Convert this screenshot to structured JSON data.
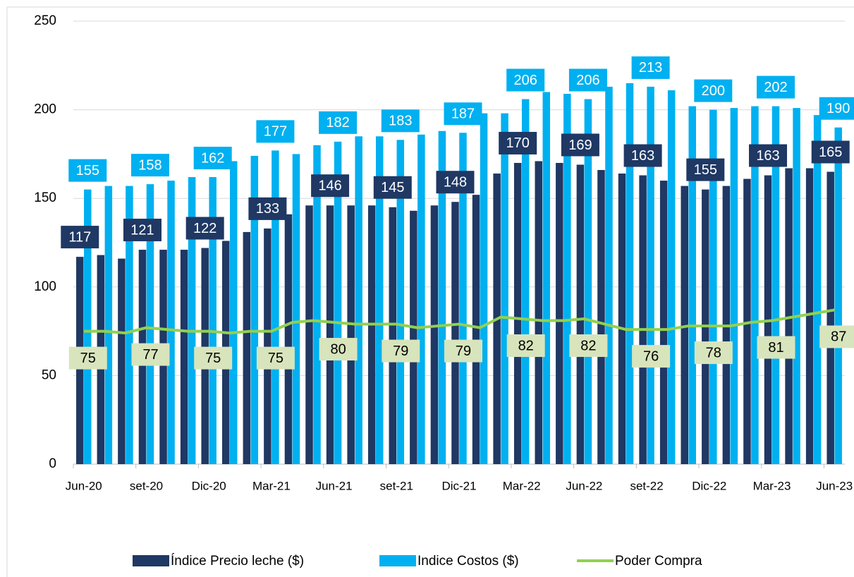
{
  "chart_data": {
    "type": "bar",
    "categories": [
      "Jun-20",
      null,
      null,
      "set-20",
      null,
      null,
      "Dic-20",
      null,
      null,
      "Mar-21",
      null,
      null,
      "Jun-21",
      null,
      null,
      "set-21",
      null,
      null,
      "Dic-21",
      null,
      null,
      "Mar-22",
      null,
      null,
      "Jun-22",
      null,
      null,
      "set-22",
      null,
      null,
      "Dic-22",
      null,
      null,
      "Mar-23",
      null,
      null,
      "Jun-23"
    ],
    "series": [
      {
        "name": "Índice Precio leche ($)",
        "type": "bar",
        "color": "#1f3864",
        "label_color": "#1f3864",
        "values": [
          117,
          118,
          116,
          121,
          121,
          121,
          122,
          126,
          131,
          133,
          141,
          146,
          146,
          146,
          146,
          145,
          143,
          146,
          148,
          152,
          164,
          170,
          171,
          170,
          169,
          166,
          164,
          163,
          160,
          157,
          155,
          157,
          161,
          163,
          167,
          167,
          165
        ]
      },
      {
        "name": "Indice Costos ($)",
        "type": "bar",
        "color": "#00b0f0",
        "label_color": "#00b0f0",
        "values": [
          155,
          157,
          157,
          158,
          160,
          162,
          162,
          171,
          174,
          177,
          175,
          180,
          182,
          185,
          185,
          183,
          186,
          188,
          187,
          198,
          198,
          206,
          210,
          209,
          206,
          213,
          215,
          213,
          211,
          202,
          200,
          201,
          202,
          202,
          201,
          197,
          190
        ]
      },
      {
        "name": "Poder Compra",
        "type": "line",
        "color": "#92d050",
        "label_color": "#d8e4bc",
        "values": [
          75,
          75,
          74,
          77,
          76,
          75,
          75,
          74,
          75,
          75,
          80,
          81,
          80,
          79,
          79,
          79,
          77,
          78,
          79,
          77,
          83,
          82,
          81,
          81,
          82,
          79,
          76,
          76,
          76,
          78,
          78,
          78,
          80,
          81,
          83,
          85,
          87
        ]
      }
    ],
    "ylim": [
      0,
      250
    ],
    "yticks": [
      0,
      50,
      100,
      150,
      200,
      250
    ],
    "grid": true,
    "legend": "bottom"
  }
}
